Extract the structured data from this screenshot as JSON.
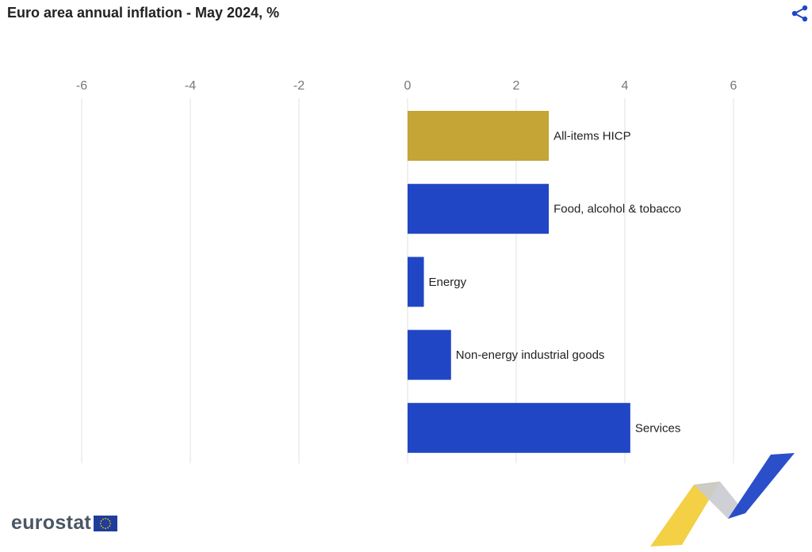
{
  "header": {
    "title": "Euro area annual inflation - May 2024, %",
    "share_icon": "share-icon"
  },
  "chart_data": {
    "type": "bar",
    "orientation": "horizontal",
    "title": "Euro area annual inflation - May 2024, %",
    "xlabel": "",
    "ylabel": "",
    "xlim": [
      -7,
      7
    ],
    "ticks": [
      -6,
      -4,
      -2,
      0,
      2,
      4,
      6
    ],
    "categories": [
      "All-items HICP",
      "Food, alcohol & tobacco",
      "Energy",
      "Non-energy industrial goods",
      "Services"
    ],
    "values": [
      2.6,
      2.6,
      0.3,
      0.8,
      4.1
    ],
    "grid": true,
    "legend": "none"
  },
  "colors": {
    "highlight": "#c4a535",
    "bar": "#2046c6",
    "grid": "#e0e0e0",
    "tick_text": "#777777"
  },
  "branding": {
    "logo_text": "eurostat",
    "flag_icon": "eu-flag-icon",
    "decoration": "ribbon-graphic"
  }
}
